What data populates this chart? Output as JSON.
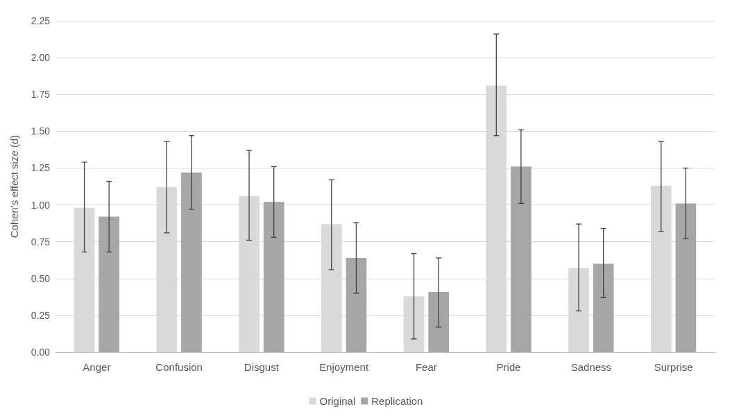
{
  "chart_data": {
    "type": "bar",
    "ylabel": "Cohen's effect size (d)",
    "categories": [
      "Anger",
      "Confusion",
      "Disgust",
      "Enjoyment",
      "Fear",
      "Pride",
      "Sadness",
      "Surprise"
    ],
    "series": [
      {
        "name": "Original",
        "color": "#d9d9d9",
        "values": [
          0.98,
          1.12,
          1.06,
          0.87,
          0.38,
          1.81,
          0.57,
          1.13
        ],
        "errors": [
          [
            0.68,
            1.29
          ],
          [
            0.81,
            1.43
          ],
          [
            0.76,
            1.37
          ],
          [
            0.56,
            1.17
          ],
          [
            0.09,
            0.67
          ],
          [
            1.47,
            2.16
          ],
          [
            0.28,
            0.87
          ],
          [
            0.82,
            1.43
          ]
        ]
      },
      {
        "name": "Replication",
        "color": "#a6a6a6",
        "values": [
          0.92,
          1.22,
          1.02,
          0.64,
          0.41,
          1.26,
          0.6,
          1.01
        ],
        "errors": [
          [
            0.68,
            1.16
          ],
          [
            0.97,
            1.47
          ],
          [
            0.78,
            1.26
          ],
          [
            0.4,
            0.88
          ],
          [
            0.17,
            0.64
          ],
          [
            1.01,
            1.51
          ],
          [
            0.37,
            0.84
          ],
          [
            0.77,
            1.25
          ]
        ]
      }
    ],
    "ylim": [
      0,
      2.25
    ],
    "yticks": [
      {
        "value": 0,
        "label": "0.00"
      },
      {
        "value": 0.25,
        "label": "0.25"
      },
      {
        "value": 0.5,
        "label": "0.50"
      },
      {
        "value": 0.75,
        "label": "0.75"
      },
      {
        "value": 1,
        "label": "1.00"
      },
      {
        "value": 1.25,
        "label": "1.25"
      },
      {
        "value": 1.5,
        "label": "1.50"
      },
      {
        "value": 1.75,
        "label": "1.75"
      },
      {
        "value": 2,
        "label": "2.00"
      },
      {
        "value": 2.25,
        "label": "2.25"
      }
    ],
    "grid": "y",
    "legend": "bottom"
  }
}
